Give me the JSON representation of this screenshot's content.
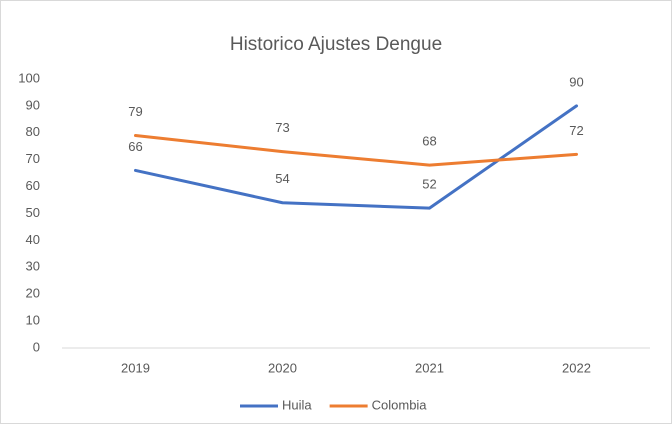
{
  "chart_data": {
    "type": "line",
    "title": "Historico Ajustes Dengue",
    "categories": [
      "2019",
      "2020",
      "2021",
      "2022"
    ],
    "series": [
      {
        "name": "Huila",
        "color": "#4472c4",
        "values": [
          66,
          54,
          52,
          90
        ]
      },
      {
        "name": "Colombia",
        "color": "#ed7d31",
        "values": [
          79,
          73,
          68,
          72
        ]
      }
    ],
    "ylim": [
      0,
      100
    ],
    "yticks": [
      0,
      10,
      20,
      30,
      40,
      50,
      60,
      70,
      80,
      90,
      100
    ],
    "grid": false,
    "legend": "bottom",
    "data_labels": true
  }
}
